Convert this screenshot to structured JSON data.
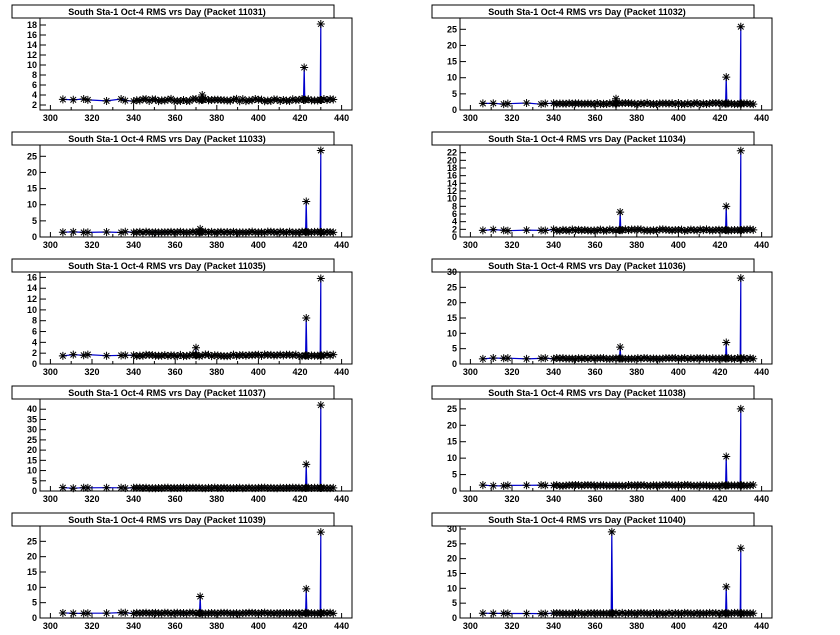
{
  "chart_data": [
    {
      "type": "line",
      "title": "South Sta-1 Oct-4 RMS vrs Day (Packet 11031)",
      "xlim": [
        295,
        445
      ],
      "ylim": [
        1,
        19.4
      ],
      "yticks": [
        2,
        4,
        6,
        8,
        10,
        12,
        14,
        16,
        18
      ],
      "xticks": [
        300,
        320,
        340,
        360,
        380,
        400,
        420,
        440
      ],
      "base": 3,
      "jitter": 0.5,
      "spikes": [
        [
          373,
          4.0
        ],
        [
          422,
          9.5
        ],
        [
          430,
          18.2
        ]
      ],
      "series": [
        {
          "color": "#0000cc"
        }
      ]
    },
    {
      "type": "line",
      "title": "South Sta-1 Oct-4 RMS vrs Day (Packet 11032)",
      "xlim": [
        295,
        445
      ],
      "ylim": [
        0,
        28.5
      ],
      "yticks": [
        0,
        5,
        10,
        15,
        20,
        25
      ],
      "xticks": [
        300,
        320,
        340,
        360,
        380,
        400,
        420,
        440
      ],
      "base": 2,
      "jitter": 0.4,
      "spikes": [
        [
          370,
          3.5
        ],
        [
          423,
          10.2
        ],
        [
          430,
          25.8
        ]
      ],
      "series": [
        {
          "color": "#0000cc"
        }
      ]
    },
    {
      "type": "line",
      "title": "South Sta-1 Oct-4 RMS vrs Day (Packet 11033)",
      "xlim": [
        295,
        445
      ],
      "ylim": [
        0,
        28.5
      ],
      "yticks": [
        0,
        5,
        10,
        15,
        20,
        25
      ],
      "xticks": [
        300,
        320,
        340,
        360,
        380,
        400,
        420,
        440
      ],
      "base": 1.5,
      "jitter": 0.3,
      "spikes": [
        [
          372,
          2.5
        ],
        [
          423,
          11.0
        ],
        [
          430,
          26.8
        ]
      ],
      "series": [
        {
          "color": "#0000cc"
        }
      ]
    },
    {
      "type": "line",
      "title": "South Sta-1 Oct-4 RMS vrs Day (Packet 11034)",
      "xlim": [
        295,
        445
      ],
      "ylim": [
        0,
        24
      ],
      "yticks": [
        0,
        2,
        4,
        6,
        8,
        10,
        12,
        14,
        16,
        18,
        20,
        22
      ],
      "xticks": [
        300,
        320,
        340,
        360,
        380,
        400,
        420,
        440
      ],
      "base": 1.8,
      "jitter": 0.4,
      "spikes": [
        [
          372,
          6.5
        ],
        [
          423,
          8.0
        ],
        [
          430,
          22.5
        ]
      ],
      "series": [
        {
          "color": "#0000cc"
        }
      ]
    },
    {
      "type": "line",
      "title": "South Sta-1 Oct-4 RMS vrs Day (Packet 11035)",
      "xlim": [
        295,
        445
      ],
      "ylim": [
        0,
        17
      ],
      "yticks": [
        0,
        2,
        4,
        6,
        8,
        10,
        12,
        14,
        16
      ],
      "xticks": [
        300,
        320,
        340,
        360,
        380,
        400,
        420,
        440
      ],
      "base": 1.6,
      "jitter": 0.3,
      "spikes": [
        [
          370,
          3.0
        ],
        [
          423,
          8.5
        ],
        [
          430,
          15.8
        ]
      ],
      "series": [
        {
          "color": "#0000cc"
        }
      ]
    },
    {
      "type": "line",
      "title": "South Sta-1 Oct-4 RMS vrs Day (Packet 11036)",
      "xlim": [
        295,
        445
      ],
      "ylim": [
        0,
        30
      ],
      "yticks": [
        0,
        5,
        10,
        15,
        20,
        25,
        30
      ],
      "xticks": [
        300,
        320,
        340,
        360,
        380,
        400,
        420,
        440
      ],
      "base": 1.8,
      "jitter": 0.3,
      "spikes": [
        [
          372,
          5.5
        ],
        [
          423,
          7.0
        ],
        [
          430,
          28.0
        ]
      ],
      "series": [
        {
          "color": "#0000cc"
        }
      ]
    },
    {
      "type": "line",
      "title": "South Sta-1 Oct-4 RMS vrs Day (Packet 11037)",
      "xlim": [
        295,
        445
      ],
      "ylim": [
        0,
        45
      ],
      "yticks": [
        0,
        5,
        10,
        15,
        20,
        25,
        30,
        35,
        40
      ],
      "xticks": [
        300,
        320,
        340,
        360,
        380,
        400,
        420,
        440
      ],
      "base": 1.5,
      "jitter": 0.3,
      "spikes": [
        [
          423,
          13.0
        ],
        [
          430,
          42.0
        ]
      ],
      "series": [
        {
          "color": "#0000cc"
        }
      ]
    },
    {
      "type": "line",
      "title": "South Sta-1 Oct-4 RMS vrs Day (Packet 11038)",
      "xlim": [
        295,
        445
      ],
      "ylim": [
        0,
        28
      ],
      "yticks": [
        0,
        5,
        10,
        15,
        20,
        25
      ],
      "xticks": [
        300,
        320,
        340,
        360,
        380,
        400,
        420,
        440
      ],
      "base": 1.7,
      "jitter": 0.3,
      "spikes": [
        [
          423,
          10.5
        ],
        [
          430,
          25.0
        ]
      ],
      "series": [
        {
          "color": "#0000cc"
        }
      ]
    },
    {
      "type": "line",
      "title": "South Sta-1 Oct-4 RMS vrs Day (Packet 11039)",
      "xlim": [
        295,
        445
      ],
      "ylim": [
        0,
        30
      ],
      "yticks": [
        0,
        5,
        10,
        15,
        20,
        25
      ],
      "xticks": [
        300,
        320,
        340,
        360,
        380,
        400,
        420,
        440
      ],
      "base": 1.6,
      "jitter": 0.3,
      "spikes": [
        [
          372,
          7.0
        ],
        [
          423,
          9.5
        ],
        [
          430,
          28.0
        ]
      ],
      "series": [
        {
          "color": "#0000cc"
        }
      ]
    },
    {
      "type": "line",
      "title": "South Sta-1 Oct-4 RMS vrs Day (Packet 11040)",
      "xlim": [
        295,
        445
      ],
      "ylim": [
        0,
        31
      ],
      "yticks": [
        0,
        5,
        10,
        15,
        20,
        25,
        30
      ],
      "xticks": [
        300,
        320,
        340,
        360,
        380,
        400,
        420,
        440
      ],
      "base": 1.6,
      "jitter": 0.3,
      "spikes": [
        [
          368,
          29.0
        ],
        [
          423,
          10.5
        ],
        [
          430,
          23.5
        ]
      ],
      "series": [
        {
          "color": "#0000cc"
        }
      ]
    }
  ]
}
